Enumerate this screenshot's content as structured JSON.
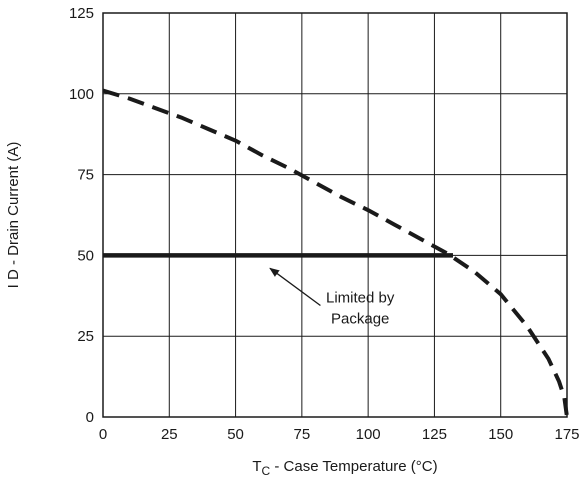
{
  "chart_data": {
    "type": "line",
    "xlabel_main": "T",
    "xlabel_sub": "C",
    "xlabel_rest": " -  Case Temperature (°C)",
    "ylabel": "I D -  Drain Current (A)",
    "xlim": [
      0,
      175
    ],
    "ylim": [
      0,
      125
    ],
    "xticks": [
      0,
      25,
      50,
      75,
      100,
      125,
      150,
      175
    ],
    "yticks": [
      0,
      25,
      50,
      75,
      100,
      125
    ],
    "grid": true,
    "series": [
      {
        "style": "dashed",
        "x": [
          0,
          10,
          20,
          30,
          40,
          50,
          60,
          70,
          80,
          90,
          100,
          110,
          120,
          130,
          140,
          150,
          160,
          168,
          172,
          174,
          175
        ],
        "y": [
          101,
          98.5,
          95.5,
          92.5,
          89,
          85.5,
          81,
          77,
          72.5,
          68,
          64,
          59.5,
          55,
          50.5,
          45,
          38,
          28,
          18,
          11,
          6,
          0
        ]
      },
      {
        "style": "solid",
        "x": [
          0,
          132
        ],
        "y": [
          50,
          50
        ]
      }
    ],
    "annotation": {
      "lines": [
        "Limited by",
        "Package"
      ],
      "arrow_to": [
        63,
        46
      ]
    }
  }
}
